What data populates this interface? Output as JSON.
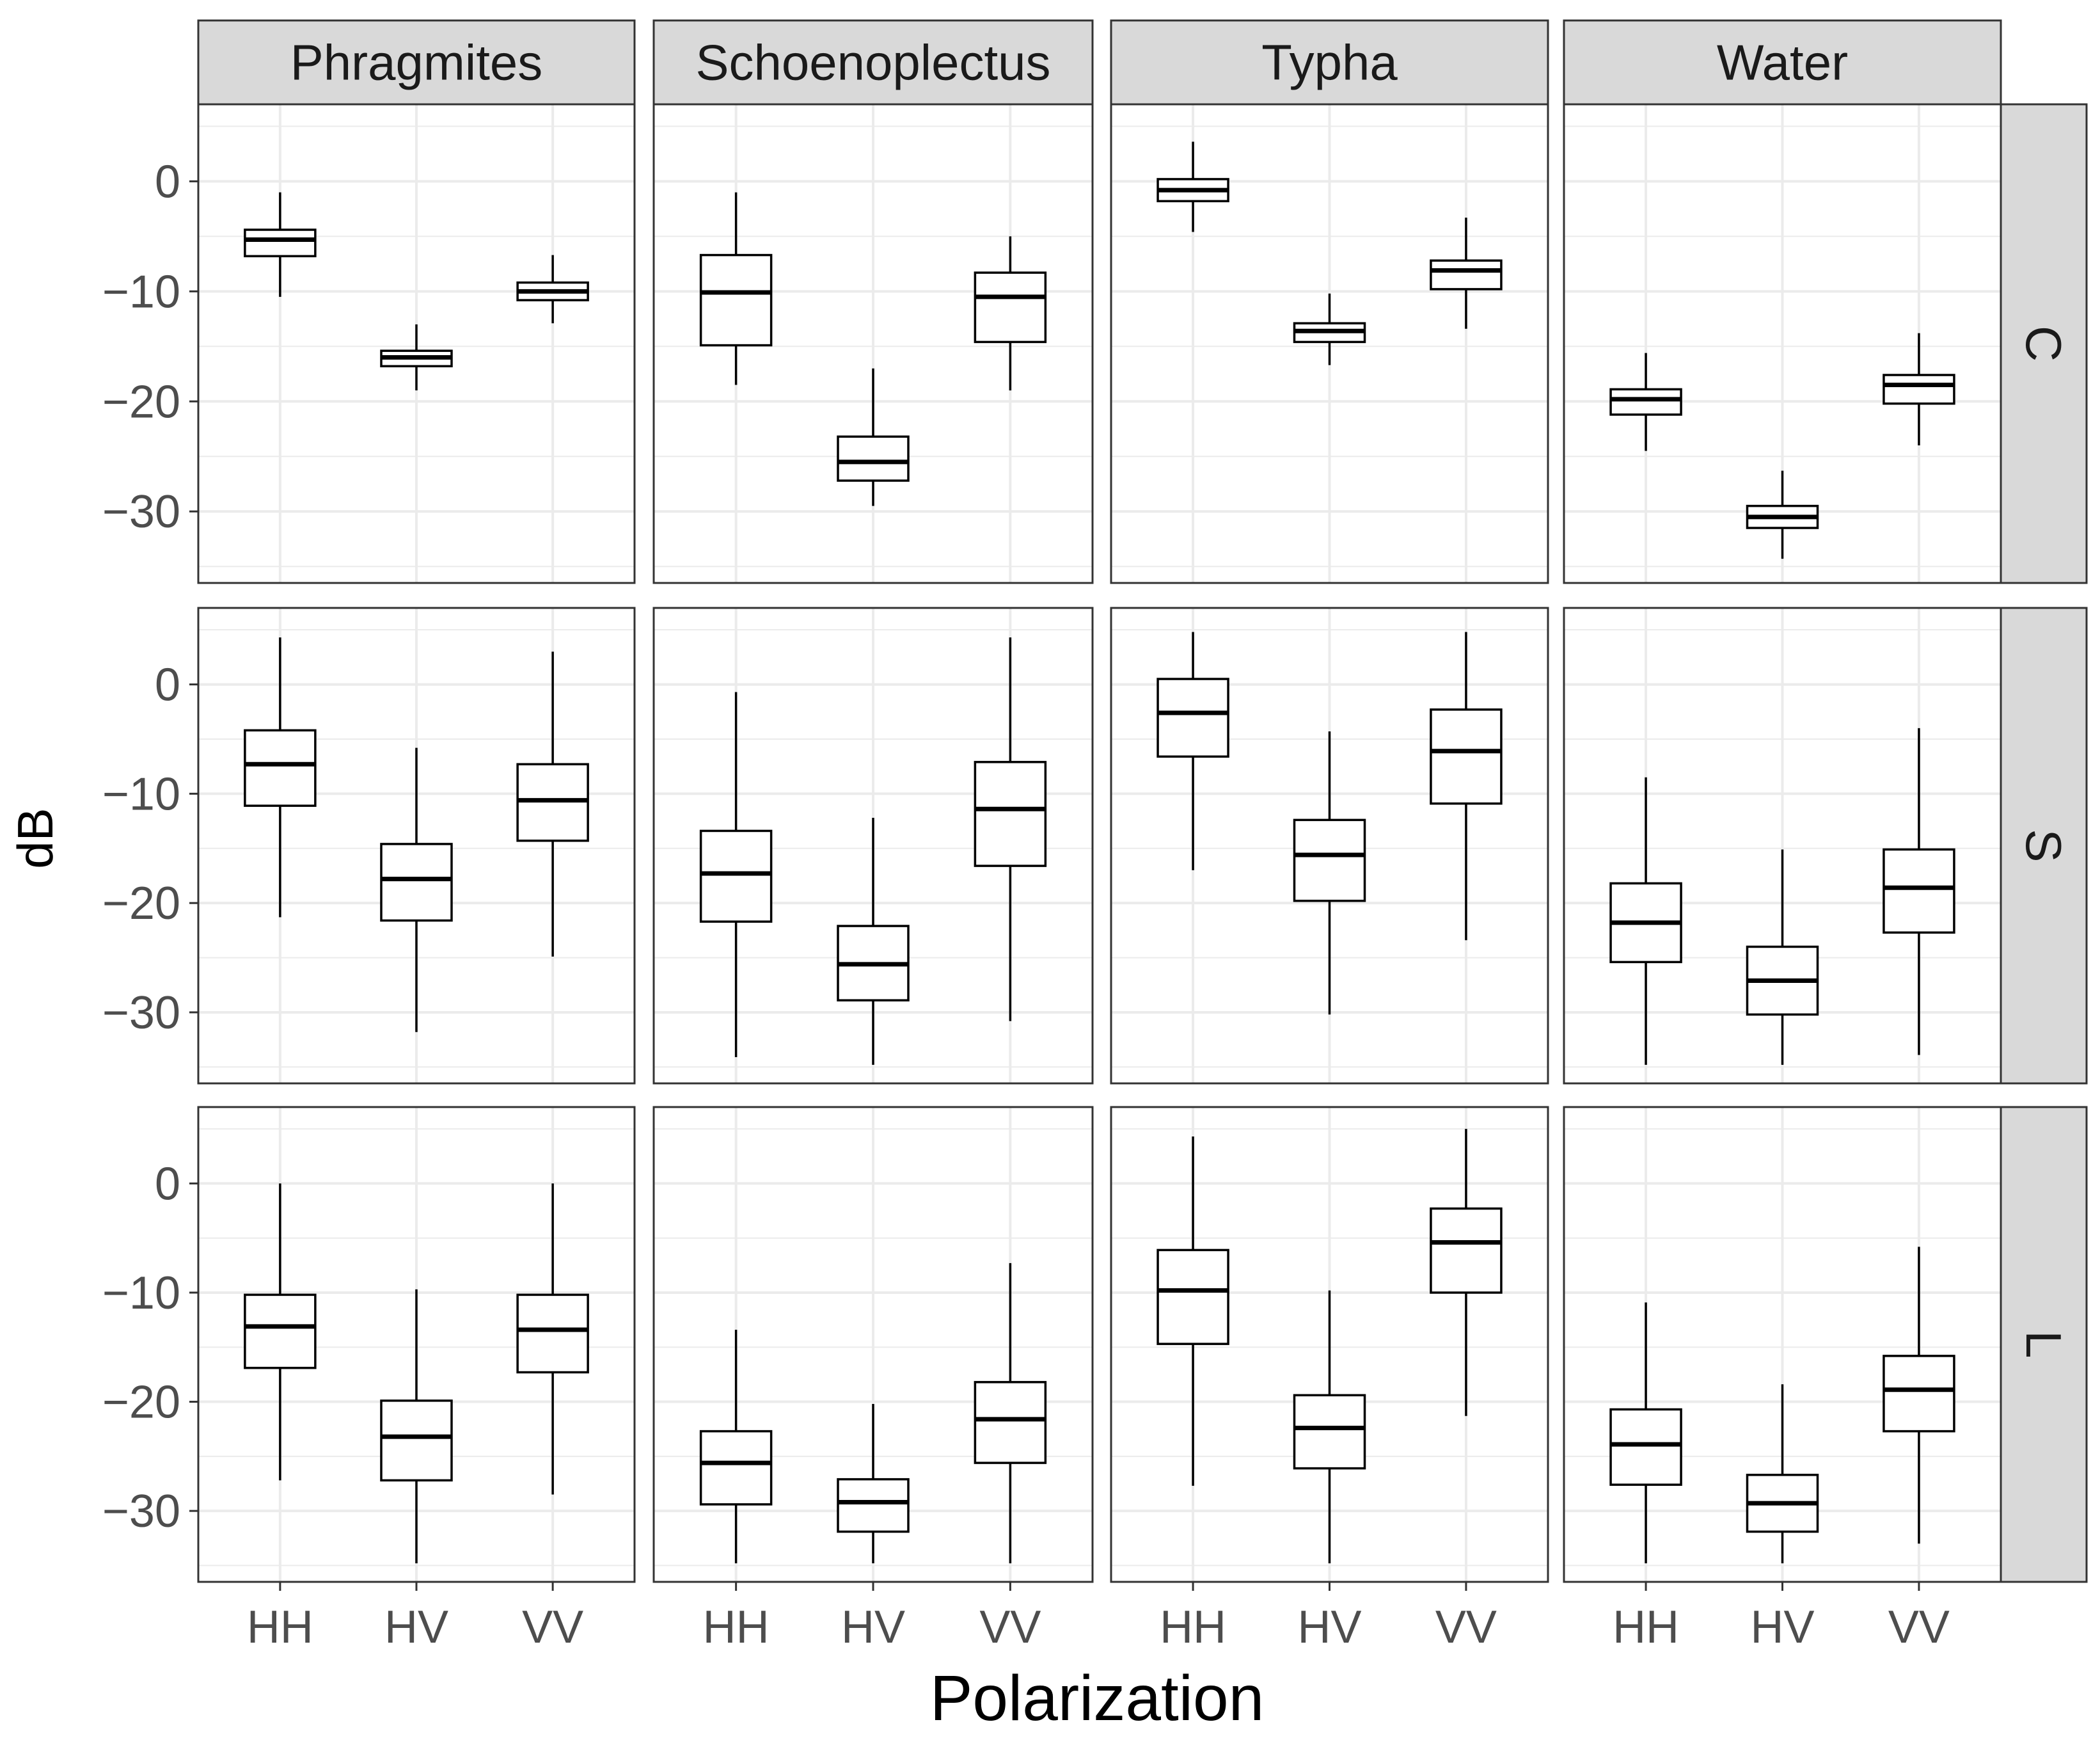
{
  "chart_data": {
    "type": "boxplot",
    "xlabel": "Polarization",
    "ylabel": "dB",
    "ylim": [
      -36.5,
      7
    ],
    "yticks": [
      0,
      -10,
      -20,
      -30
    ],
    "ytick_labels": [
      "0",
      "−10",
      "−20",
      "−30"
    ],
    "categories": [
      "HH",
      "HV",
      "VV"
    ],
    "columns": [
      "Phragmites",
      "Schoenoplectus",
      "Typha",
      "Water"
    ],
    "rows": [
      "C",
      "S",
      "L"
    ],
    "grid": true,
    "colors": {
      "strip_fill": "#d9d9d9",
      "grid": "#ebebeb",
      "panel_border": "#333333",
      "box": "#000000"
    },
    "panels": [
      {
        "row": "C",
        "column": "Phragmites",
        "boxes": [
          {
            "x": "HH",
            "min": -10.5,
            "q1": -6.8,
            "median": -5.3,
            "q3": -4.4,
            "max": -1.0
          },
          {
            "x": "HV",
            "min": -19.0,
            "q1": -16.8,
            "median": -16.0,
            "q3": -15.4,
            "max": -13.0
          },
          {
            "x": "VV",
            "min": -12.9,
            "q1": -10.8,
            "median": -10.0,
            "q3": -9.2,
            "max": -6.7
          }
        ]
      },
      {
        "row": "C",
        "column": "Schoenoplectus",
        "boxes": [
          {
            "x": "HH",
            "min": -18.5,
            "q1": -14.9,
            "median": -10.1,
            "q3": -6.7,
            "max": -1.0
          },
          {
            "x": "HV",
            "min": -29.5,
            "q1": -27.2,
            "median": -25.5,
            "q3": -23.2,
            "max": -17.0
          },
          {
            "x": "VV",
            "min": -19.0,
            "q1": -14.6,
            "median": -10.5,
            "q3": -8.3,
            "max": -5.0
          }
        ]
      },
      {
        "row": "C",
        "column": "Typha",
        "boxes": [
          {
            "x": "HH",
            "min": -4.6,
            "q1": -1.8,
            "median": -0.8,
            "q3": 0.2,
            "max": 3.6
          },
          {
            "x": "HV",
            "min": -16.7,
            "q1": -14.6,
            "median": -13.6,
            "q3": -12.9,
            "max": -10.2
          },
          {
            "x": "VV",
            "min": -13.4,
            "q1": -9.8,
            "median": -8.1,
            "q3": -7.2,
            "max": -3.3
          }
        ]
      },
      {
        "row": "C",
        "column": "Water",
        "boxes": [
          {
            "x": "HH",
            "min": -24.5,
            "q1": -21.2,
            "median": -19.8,
            "q3": -18.9,
            "max": -15.6
          },
          {
            "x": "HV",
            "min": -34.3,
            "q1": -31.5,
            "median": -30.5,
            "q3": -29.5,
            "max": -26.3
          },
          {
            "x": "VV",
            "min": -24.0,
            "q1": -20.2,
            "median": -18.5,
            "q3": -17.6,
            "max": -13.8
          }
        ]
      },
      {
        "row": "S",
        "column": "Phragmites",
        "boxes": [
          {
            "x": "HH",
            "min": -21.3,
            "q1": -11.1,
            "median": -7.3,
            "q3": -4.2,
            "max": 4.3
          },
          {
            "x": "HV",
            "min": -31.8,
            "q1": -21.6,
            "median": -17.8,
            "q3": -14.6,
            "max": -5.8
          },
          {
            "x": "VV",
            "min": -24.9,
            "q1": -14.3,
            "median": -10.6,
            "q3": -7.3,
            "max": 3.0
          }
        ]
      },
      {
        "row": "S",
        "column": "Schoenoplectus",
        "boxes": [
          {
            "x": "HH",
            "min": -34.1,
            "q1": -21.7,
            "median": -17.3,
            "q3": -13.4,
            "max": -0.7
          },
          {
            "x": "HV",
            "min": -34.8,
            "q1": -28.9,
            "median": -25.6,
            "q3": -22.1,
            "max": -12.2
          },
          {
            "x": "VV",
            "min": -30.8,
            "q1": -16.6,
            "median": -11.4,
            "q3": -7.1,
            "max": 4.3
          }
        ]
      },
      {
        "row": "S",
        "column": "Typha",
        "boxes": [
          {
            "x": "HH",
            "min": -17.0,
            "q1": -6.6,
            "median": -2.6,
            "q3": 0.5,
            "max": 4.8
          },
          {
            "x": "HV",
            "min": -30.2,
            "q1": -19.8,
            "median": -15.6,
            "q3": -12.4,
            "max": -4.3
          },
          {
            "x": "VV",
            "min": -23.4,
            "q1": -10.9,
            "median": -6.1,
            "q3": -2.3,
            "max": 4.8
          }
        ]
      },
      {
        "row": "S",
        "column": "Water",
        "boxes": [
          {
            "x": "HH",
            "min": -34.8,
            "q1": -25.4,
            "median": -21.8,
            "q3": -18.2,
            "max": -8.5
          },
          {
            "x": "HV",
            "min": -34.8,
            "q1": -30.2,
            "median": -27.1,
            "q3": -24.0,
            "max": -15.1
          },
          {
            "x": "VV",
            "min": -33.9,
            "q1": -22.7,
            "median": -18.6,
            "q3": -15.1,
            "max": -4.0
          }
        ]
      },
      {
        "row": "L",
        "column": "Phragmites",
        "boxes": [
          {
            "x": "HH",
            "min": -27.2,
            "q1": -16.9,
            "median": -13.1,
            "q3": -10.2,
            "max": 0.0
          },
          {
            "x": "HV",
            "min": -34.8,
            "q1": -27.2,
            "median": -23.2,
            "q3": -19.9,
            "max": -9.7
          },
          {
            "x": "VV",
            "min": -28.5,
            "q1": -17.3,
            "median": -13.4,
            "q3": -10.2,
            "max": 0.0
          }
        ]
      },
      {
        "row": "L",
        "column": "Schoenoplectus",
        "boxes": [
          {
            "x": "HH",
            "min": -34.8,
            "q1": -29.4,
            "median": -25.6,
            "q3": -22.7,
            "max": -13.4
          },
          {
            "x": "HV",
            "min": -34.8,
            "q1": -31.9,
            "median": -29.2,
            "q3": -27.1,
            "max": -20.2
          },
          {
            "x": "VV",
            "min": -34.8,
            "q1": -25.6,
            "median": -21.6,
            "q3": -18.2,
            "max": -7.3
          }
        ]
      },
      {
        "row": "L",
        "column": "Typha",
        "boxes": [
          {
            "x": "HH",
            "min": -27.7,
            "q1": -14.7,
            "median": -9.8,
            "q3": -6.1,
            "max": 4.3
          },
          {
            "x": "HV",
            "min": -34.8,
            "q1": -26.1,
            "median": -22.4,
            "q3": -19.4,
            "max": -9.8
          },
          {
            "x": "VV",
            "min": -21.3,
            "q1": -10.0,
            "median": -5.4,
            "q3": -2.3,
            "max": 5.0
          }
        ]
      },
      {
        "row": "L",
        "column": "Water",
        "boxes": [
          {
            "x": "HH",
            "min": -34.8,
            "q1": -27.6,
            "median": -23.9,
            "q3": -20.7,
            "max": -10.9
          },
          {
            "x": "HV",
            "min": -34.8,
            "q1": -31.9,
            "median": -29.3,
            "q3": -26.7,
            "max": -18.4
          },
          {
            "x": "VV",
            "min": -33.0,
            "q1": -22.7,
            "median": -18.9,
            "q3": -15.8,
            "max": -5.8
          }
        ]
      }
    ]
  }
}
